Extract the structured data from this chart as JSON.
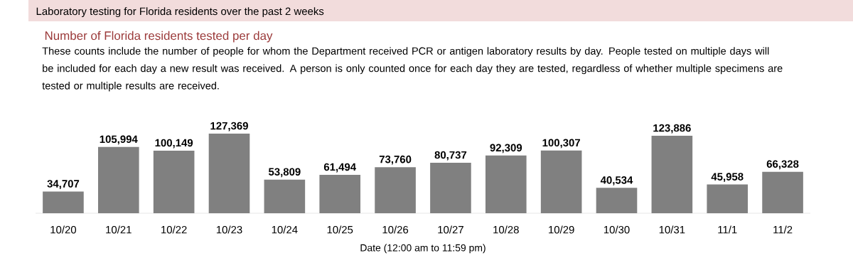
{
  "chart_data": {
    "type": "bar",
    "title": "Laboratory testing for Florida residents over the past 2 weeks",
    "subtitle": "Number of Florida residents tested per day",
    "annotations": [
      "These counts include the number of people for whom the Department received PCR or antigen laboratory results by day. People tested on multiple days will be included for each day a new result was received. A person is only counted once for each day they are tested, regardless of whether multiple specimens are tested or multiple results are received."
    ],
    "xlabel": "Date (12:00 am to 11:59 pm)",
    "categories": [
      "10/20",
      "10/21",
      "10/22",
      "10/23",
      "10/24",
      "10/25",
      "10/26",
      "10/27",
      "10/28",
      "10/29",
      "10/30",
      "10/31",
      "11/1",
      "11/2"
    ],
    "values": [
      34707,
      105994,
      100149,
      127369,
      53809,
      61494,
      73760,
      80737,
      92309,
      100307,
      40534,
      123886,
      45958,
      66328
    ],
    "value_labels": [
      "34,707",
      "105,994",
      "100,149",
      "127,369",
      "53,809",
      "61,494",
      "73,760",
      "80,737",
      "92,309",
      "100,307",
      "40,534",
      "123,886",
      "45,958",
      "66,328"
    ],
    "color": "#808080"
  }
}
